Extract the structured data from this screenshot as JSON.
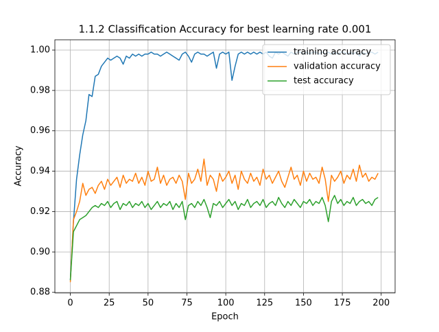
{
  "chart_data": {
    "type": "line",
    "title": "1.1.2 Classification Accuracy for best learning rate 0.001",
    "x_label": "Epoch",
    "y_label": "Accuracy",
    "x": [
      0,
      2,
      4,
      6,
      8,
      10,
      12,
      14,
      16,
      18,
      20,
      22,
      24,
      26,
      28,
      30,
      32,
      34,
      36,
      38,
      40,
      42,
      44,
      46,
      48,
      50,
      52,
      54,
      56,
      58,
      60,
      62,
      64,
      66,
      68,
      70,
      72,
      74,
      76,
      78,
      80,
      82,
      84,
      86,
      88,
      90,
      92,
      94,
      96,
      98,
      100,
      102,
      104,
      106,
      108,
      110,
      112,
      114,
      116,
      118,
      120,
      122,
      124,
      126,
      128,
      130,
      132,
      134,
      136,
      138,
      140,
      142,
      144,
      146,
      148,
      150,
      152,
      154,
      156,
      158,
      160,
      162,
      164,
      166,
      168,
      170,
      172,
      174,
      176,
      178,
      180,
      182,
      184,
      186,
      188,
      190,
      192,
      194,
      196,
      198
    ],
    "series": [
      {
        "name": "training accuracy",
        "color": "#1f77b4",
        "values": [
          0.886,
          0.915,
          0.936,
          0.948,
          0.958,
          0.965,
          0.978,
          0.977,
          0.987,
          0.988,
          0.992,
          0.994,
          0.996,
          0.995,
          0.996,
          0.997,
          0.996,
          0.993,
          0.997,
          0.996,
          0.998,
          0.997,
          0.998,
          0.997,
          0.998,
          0.998,
          0.999,
          0.998,
          0.998,
          0.997,
          0.998,
          0.999,
          0.998,
          0.997,
          0.996,
          0.995,
          0.998,
          0.999,
          0.997,
          0.994,
          0.998,
          0.999,
          0.998,
          0.998,
          0.997,
          0.998,
          0.999,
          0.991,
          0.998,
          0.999,
          0.998,
          0.999,
          0.985,
          0.992,
          0.998,
          0.999,
          0.998,
          0.999,
          0.998,
          0.999,
          0.998,
          0.999,
          0.998,
          0.999,
          0.997,
          0.996,
          0.999,
          0.998,
          0.999,
          0.998,
          0.997,
          0.999,
          0.998,
          0.999,
          0.999,
          0.998,
          0.999,
          0.998,
          0.999,
          0.999,
          0.998,
          0.999,
          0.998,
          0.999,
          0.998,
          0.999,
          0.998,
          0.999,
          0.999,
          0.998,
          0.999,
          0.998,
          0.999,
          0.997,
          0.999,
          0.998,
          0.999,
          0.999,
          0.998,
          0.999
        ]
      },
      {
        "name": "validation accuracy",
        "color": "#ff7f0e",
        "values": [
          0.885,
          0.916,
          0.92,
          0.925,
          0.934,
          0.928,
          0.931,
          0.932,
          0.929,
          0.933,
          0.935,
          0.931,
          0.936,
          0.933,
          0.935,
          0.937,
          0.932,
          0.938,
          0.934,
          0.936,
          0.935,
          0.939,
          0.934,
          0.937,
          0.933,
          0.94,
          0.935,
          0.936,
          0.942,
          0.934,
          0.938,
          0.933,
          0.936,
          0.937,
          0.934,
          0.938,
          0.935,
          0.926,
          0.939,
          0.934,
          0.936,
          0.941,
          0.935,
          0.946,
          0.933,
          0.938,
          0.936,
          0.93,
          0.939,
          0.935,
          0.937,
          0.94,
          0.934,
          0.938,
          0.931,
          0.94,
          0.936,
          0.934,
          0.939,
          0.935,
          0.937,
          0.933,
          0.941,
          0.936,
          0.938,
          0.934,
          0.937,
          0.94,
          0.935,
          0.932,
          0.937,
          0.942,
          0.936,
          0.938,
          0.933,
          0.94,
          0.935,
          0.939,
          0.936,
          0.937,
          0.934,
          0.942,
          0.936,
          0.925,
          0.938,
          0.935,
          0.937,
          0.94,
          0.934,
          0.938,
          0.936,
          0.941,
          0.935,
          0.943,
          0.937,
          0.939,
          0.935,
          0.937,
          0.936,
          0.939
        ]
      },
      {
        "name": "test accuracy",
        "color": "#2ca02c",
        "values": [
          0.886,
          0.91,
          0.913,
          0.916,
          0.917,
          0.918,
          0.92,
          0.922,
          0.923,
          0.922,
          0.924,
          0.923,
          0.925,
          0.922,
          0.924,
          0.925,
          0.921,
          0.924,
          0.923,
          0.925,
          0.922,
          0.924,
          0.923,
          0.925,
          0.922,
          0.924,
          0.921,
          0.923,
          0.925,
          0.922,
          0.924,
          0.923,
          0.925,
          0.921,
          0.924,
          0.922,
          0.925,
          0.916,
          0.923,
          0.924,
          0.922,
          0.925,
          0.923,
          0.926,
          0.922,
          0.917,
          0.924,
          0.923,
          0.925,
          0.922,
          0.924,
          0.926,
          0.923,
          0.925,
          0.921,
          0.924,
          0.923,
          0.926,
          0.922,
          0.924,
          0.925,
          0.923,
          0.926,
          0.922,
          0.924,
          0.925,
          0.923,
          0.927,
          0.924,
          0.922,
          0.925,
          0.923,
          0.926,
          0.924,
          0.922,
          0.925,
          0.924,
          0.926,
          0.923,
          0.925,
          0.924,
          0.927,
          0.923,
          0.915,
          0.925,
          0.928,
          0.924,
          0.926,
          0.923,
          0.925,
          0.924,
          0.927,
          0.923,
          0.925,
          0.926,
          0.924,
          0.925,
          0.923,
          0.926,
          0.927
        ]
      }
    ],
    "xlim": [
      -9.95,
      208.95
    ],
    "ylim": [
      0.8797,
      1.0051
    ],
    "xticks": [
      0,
      25,
      50,
      75,
      100,
      125,
      150,
      175,
      200
    ],
    "yticks": [
      0.88,
      {
        "value": 0.9,
        "label": "0.90"
      },
      0.92,
      0.94,
      0.96,
      0.98,
      {
        "value": 1,
        "label": "1.00"
      }
    ],
    "grid": true,
    "legend": "upper-right"
  }
}
